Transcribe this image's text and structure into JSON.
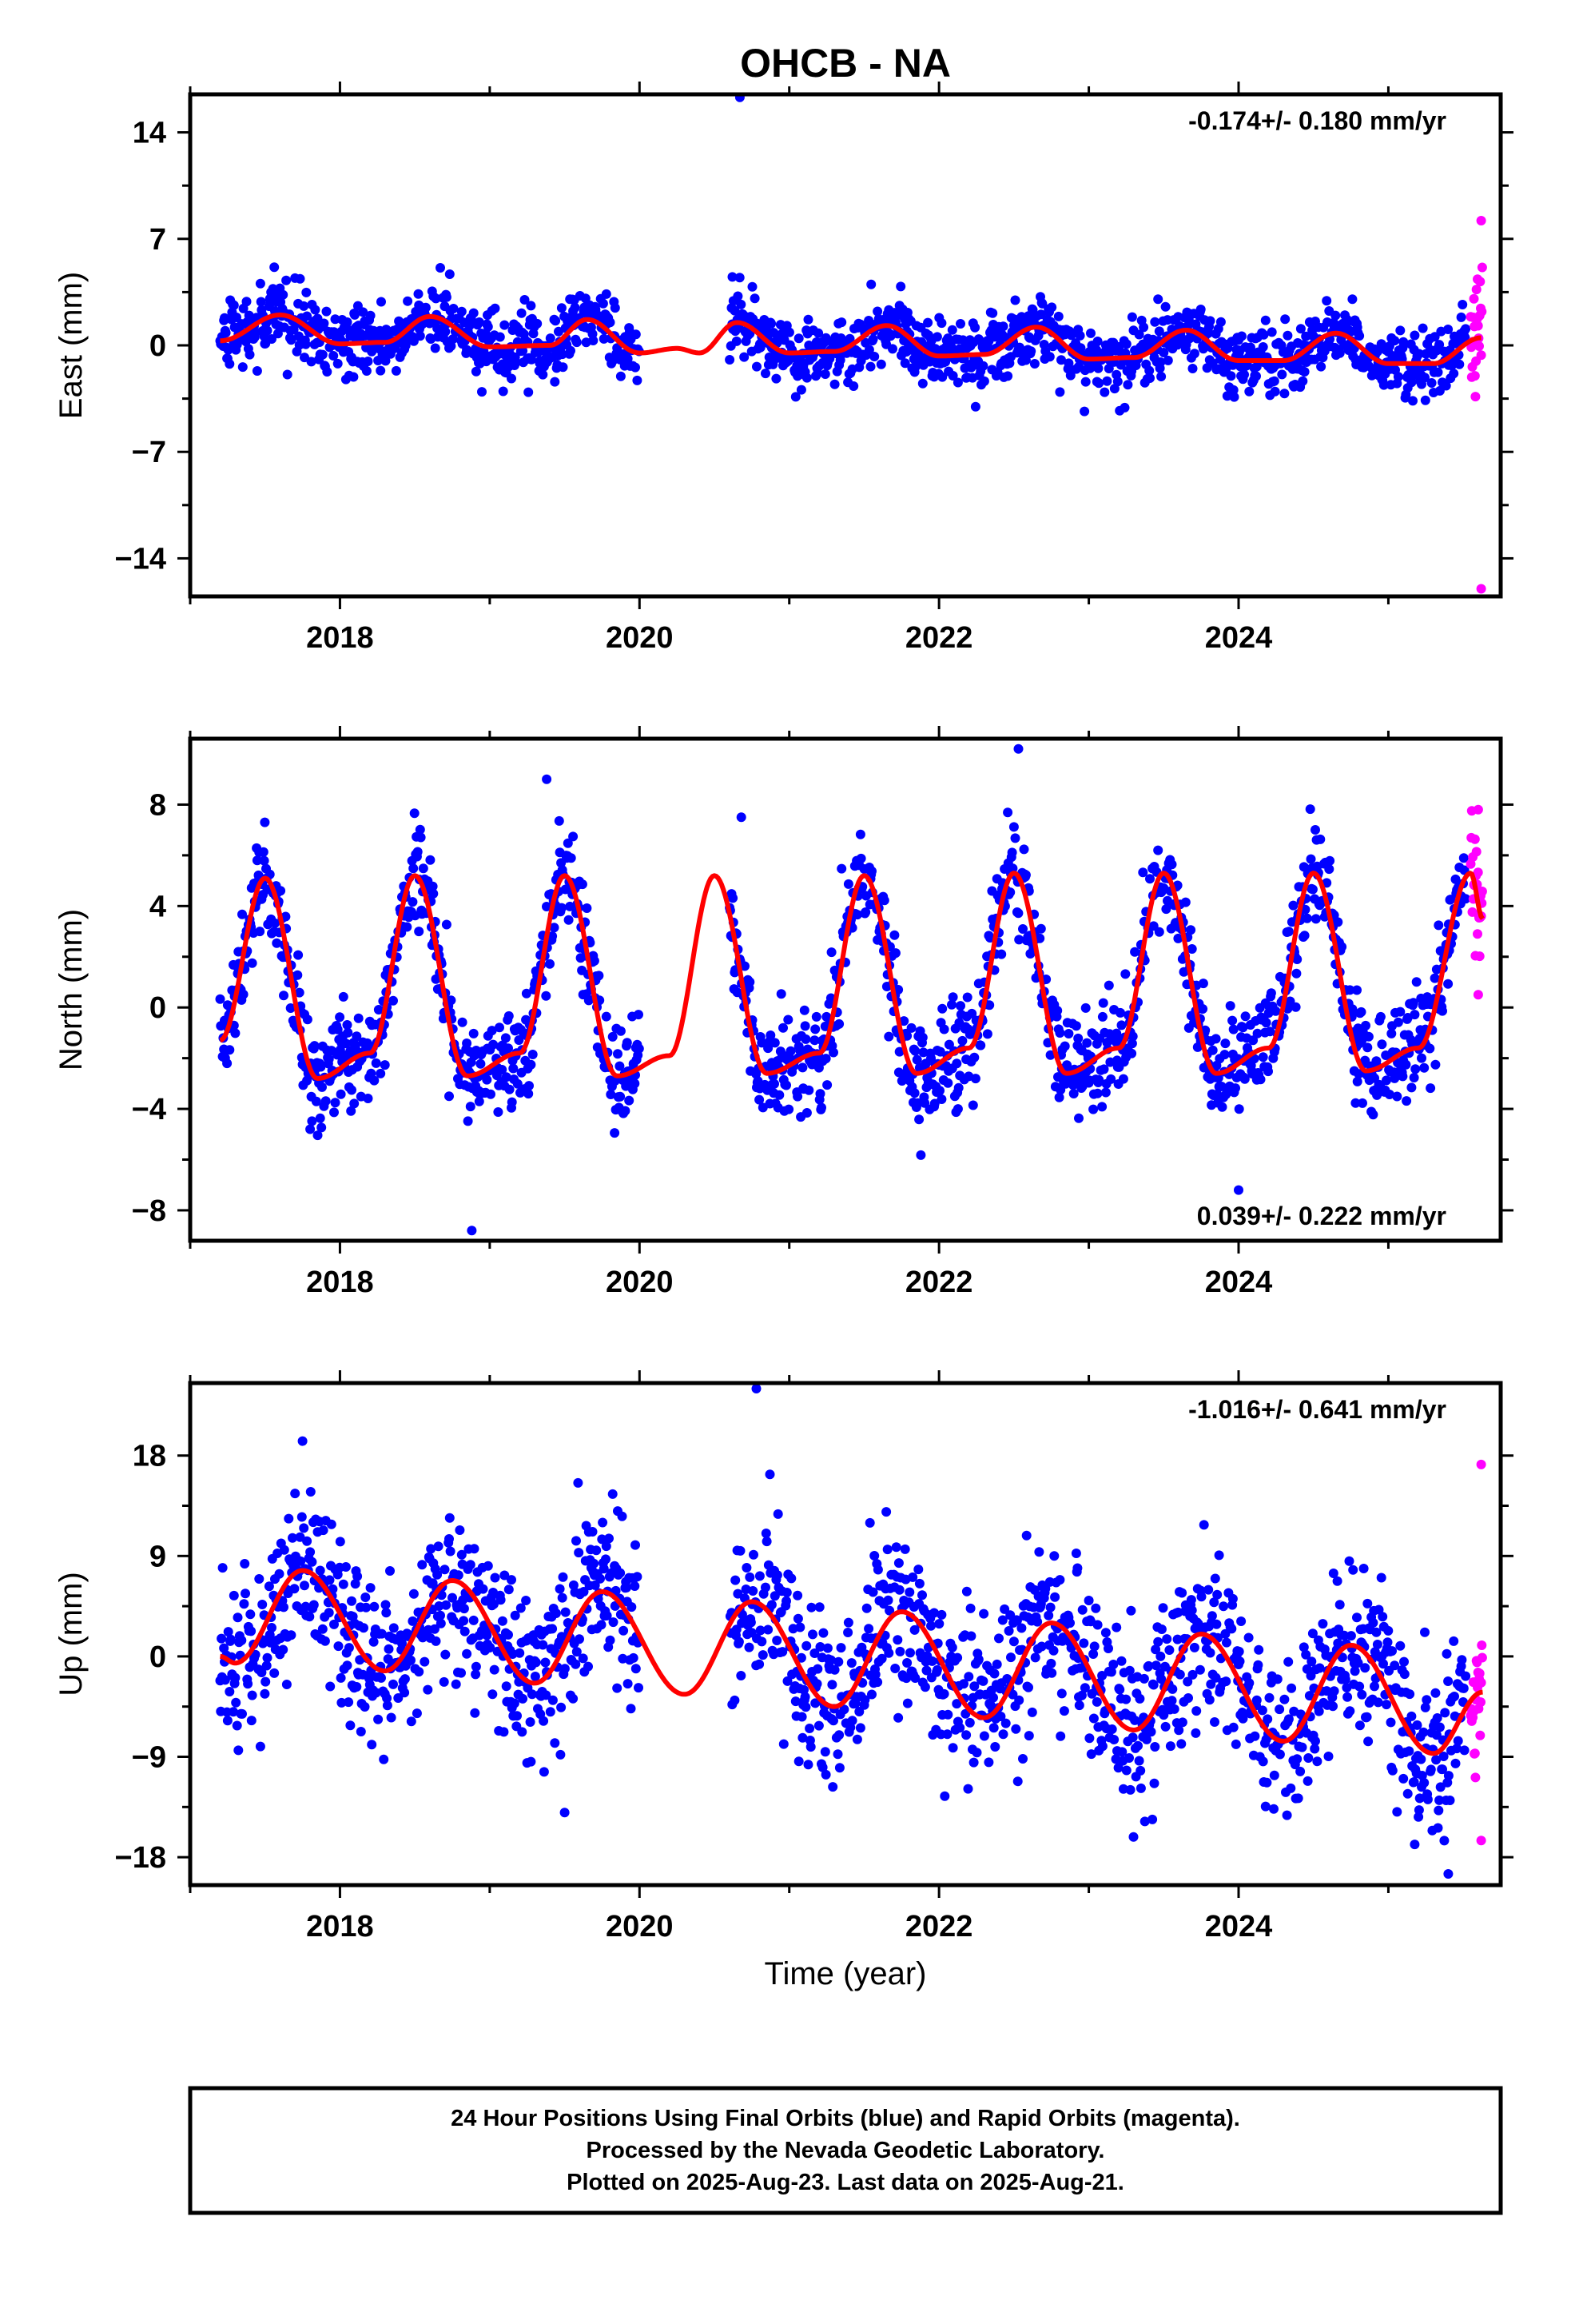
{
  "figure_title": "OHCB - NA",
  "footer": {
    "line1": "24 Hour Positions Using Final Orbits (blue) and Rapid Orbits (magenta).",
    "line2": "Processed by the Nevada Geodetic Laboratory.",
    "line3": "Plotted on 2025-Aug-23. Last data on 2025-Aug-21."
  },
  "colors": {
    "final": "#0000ff",
    "rapid": "#ff00ff",
    "model": "#ff0000",
    "frame": "#000000"
  },
  "chart_data": [
    {
      "type": "scatter",
      "title": "OHCB - NA",
      "ylabel": "East (mm)",
      "xlabel": "",
      "xlim": [
        2017.0,
        2025.75
      ],
      "ylim": [
        -16.5,
        16.5
      ],
      "xticks": [
        2018,
        2020,
        2022,
        2024
      ],
      "xtick_labels": [
        "2018",
        "2020",
        "2022",
        "2024"
      ],
      "yticks": [
        14,
        7,
        0,
        -7,
        -14
      ],
      "ytick_labels": [
        "14",
        "7",
        "0",
        "−7",
        "−14"
      ],
      "rate_label": "-0.174+/- 0.180 mm/yr",
      "rate_label_position": "top-right",
      "series": [
        {
          "name": "Final Orbits",
          "color": "#0000ff",
          "x_start": 2017.2,
          "x_end": 2025.52,
          "gap": [
            2020.0,
            2020.6
          ],
          "scatter_sd": 1.1,
          "outliers": [
            [
              2020.67,
              16.3
            ],
            [
              2020.62,
              4.5
            ]
          ]
        },
        {
          "name": "Rapid Orbits",
          "color": "#ff00ff",
          "x_start": 2025.55,
          "x_end": 2025.63,
          "outliers": [
            [
              2025.62,
              8.2
            ],
            [
              2025.62,
              -16.0
            ]
          ]
        }
      ],
      "model_curve": [
        [
          2017.2,
          0.3
        ],
        [
          2017.6,
          2.0
        ],
        [
          2018.0,
          0.1
        ],
        [
          2018.3,
          0.2
        ],
        [
          2018.6,
          1.9
        ],
        [
          2019.0,
          -0.1
        ],
        [
          2019.4,
          0.0
        ],
        [
          2019.65,
          1.7
        ],
        [
          2020.0,
          -0.5
        ],
        [
          2020.25,
          -0.2
        ],
        [
          2020.4,
          -0.5
        ],
        [
          2020.65,
          1.5
        ],
        [
          2021.0,
          -0.5
        ],
        [
          2021.3,
          -0.4
        ],
        [
          2021.65,
          1.3
        ],
        [
          2022.0,
          -0.7
        ],
        [
          2022.3,
          -0.6
        ],
        [
          2022.65,
          1.2
        ],
        [
          2023.0,
          -0.9
        ],
        [
          2023.3,
          -0.8
        ],
        [
          2023.65,
          1.0
        ],
        [
          2024.0,
          -1.0
        ],
        [
          2024.3,
          -1.0
        ],
        [
          2024.65,
          0.8
        ],
        [
          2025.0,
          -1.2
        ],
        [
          2025.3,
          -1.2
        ],
        [
          2025.62,
          0.5
        ]
      ]
    },
    {
      "type": "scatter",
      "ylabel": "North (mm)",
      "xlabel": "",
      "xlim": [
        2017.0,
        2025.75
      ],
      "ylim": [
        -9.2,
        10.6
      ],
      "xticks": [
        2018,
        2020,
        2022,
        2024
      ],
      "xtick_labels": [
        "2018",
        "2020",
        "2022",
        "2024"
      ],
      "yticks": [
        8,
        4,
        0,
        -4,
        -8
      ],
      "ytick_labels": [
        "8",
        "4",
        "0",
        "−4",
        "−8"
      ],
      "rate_label": "0.039+/- 0.222 mm/yr",
      "rate_label_position": "bottom-right",
      "series": [
        {
          "name": "Final Orbits",
          "color": "#0000ff",
          "x_start": 2017.2,
          "x_end": 2025.52,
          "gap": [
            2020.0,
            2020.6
          ],
          "scatter_sd": 1.0,
          "outliers": [
            [
              2018.88,
              -8.8
            ],
            [
              2019.38,
              9.0
            ],
            [
              2022.53,
              10.2
            ],
            [
              2020.68,
              7.5
            ],
            [
              2024.0,
              -7.2
            ]
          ]
        },
        {
          "name": "Rapid Orbits",
          "color": "#ff00ff",
          "x_start": 2025.55,
          "x_end": 2025.63,
          "outliers": [
            [
              2025.6,
              7.8
            ],
            [
              2025.6,
              0.5
            ]
          ]
        }
      ],
      "model_curve": [
        [
          2017.2,
          -1.3
        ],
        [
          2017.5,
          5.1
        ],
        [
          2017.85,
          -2.8
        ],
        [
          2018.2,
          -1.8
        ],
        [
          2018.5,
          5.2
        ],
        [
          2018.85,
          -2.7
        ],
        [
          2019.2,
          -1.8
        ],
        [
          2019.5,
          5.2
        ],
        [
          2019.85,
          -2.7
        ],
        [
          2020.2,
          -1.9
        ],
        [
          2020.5,
          5.2
        ],
        [
          2020.85,
          -2.6
        ],
        [
          2021.2,
          -1.8
        ],
        [
          2021.5,
          5.2
        ],
        [
          2021.85,
          -2.6
        ],
        [
          2022.2,
          -1.6
        ],
        [
          2022.5,
          5.3
        ],
        [
          2022.85,
          -2.6
        ],
        [
          2023.2,
          -1.6
        ],
        [
          2023.5,
          5.3
        ],
        [
          2023.85,
          -2.6
        ],
        [
          2024.2,
          -1.6
        ],
        [
          2024.5,
          5.3
        ],
        [
          2024.85,
          -2.5
        ],
        [
          2025.2,
          -1.6
        ],
        [
          2025.55,
          5.3
        ],
        [
          2025.63,
          3.5
        ]
      ]
    },
    {
      "type": "scatter",
      "ylabel": "Up (mm)",
      "xlabel": "Time (year)",
      "xlim": [
        2017.0,
        2025.75
      ],
      "ylim": [
        -20.5,
        24.5
      ],
      "xticks": [
        2018,
        2020,
        2022,
        2024
      ],
      "xtick_labels": [
        "2018",
        "2020",
        "2022",
        "2024"
      ],
      "yticks": [
        18,
        9,
        0,
        -9,
        -18
      ],
      "ytick_labels": [
        "18",
        "9",
        "0",
        "−9",
        "−18"
      ],
      "rate_label": "-1.016+/- 0.641 mm/yr",
      "rate_label_position": "top-right",
      "series": [
        {
          "name": "Final Orbits",
          "color": "#0000ff",
          "x_start": 2017.2,
          "x_end": 2025.52,
          "gap": [
            2020.0,
            2020.6
          ],
          "scatter_sd": 3.8,
          "outliers": [
            [
              2020.78,
              24.0
            ],
            [
              2017.75,
              19.3
            ],
            [
              2019.5,
              -14.0
            ],
            [
              2025.4,
              -19.5
            ]
          ]
        },
        {
          "name": "Rapid Orbits",
          "color": "#ff00ff",
          "x_start": 2025.55,
          "x_end": 2025.63,
          "outliers": [
            [
              2025.62,
              17.2
            ],
            [
              2025.62,
              -16.5
            ]
          ]
        }
      ],
      "model_curve": [
        [
          2017.2,
          0.0
        ],
        [
          2017.3,
          -0.6
        ],
        [
          2017.75,
          7.7
        ],
        [
          2018.3,
          -1.3
        ],
        [
          2018.75,
          6.8
        ],
        [
          2019.3,
          -2.4
        ],
        [
          2019.75,
          5.8
        ],
        [
          2020.3,
          -3.4
        ],
        [
          2020.75,
          4.9
        ],
        [
          2021.3,
          -4.5
        ],
        [
          2021.75,
          4.0
        ],
        [
          2022.3,
          -5.5
        ],
        [
          2022.75,
          3.0
        ],
        [
          2023.3,
          -6.6
        ],
        [
          2023.75,
          2.0
        ],
        [
          2024.3,
          -7.6
        ],
        [
          2024.75,
          1.0
        ],
        [
          2025.3,
          -8.7
        ],
        [
          2025.63,
          -3.2
        ]
      ]
    }
  ]
}
